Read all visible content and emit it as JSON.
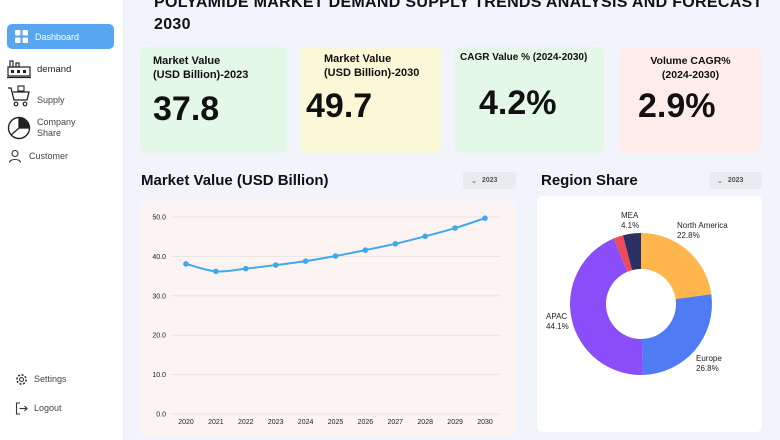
{
  "page": {
    "title": "POLYAMIDE MARKET DEMAND SUPPLY TRENDS ANALYSIS AND FORECAST 2030"
  },
  "sidebar": {
    "items": [
      {
        "label": "Dashboard",
        "icon": "grid-icon",
        "active": true
      },
      {
        "label": "demand",
        "icon": "factory-icon"
      },
      {
        "label": "Supply",
        "icon": "cart-icon"
      },
      {
        "label": "Company Share",
        "icon": "pie-chart-icon"
      },
      {
        "label": "Customer",
        "icon": "user-icon"
      }
    ],
    "bottom_items": [
      {
        "label": "Settings",
        "icon": "gear-icon"
      },
      {
        "label": "Logout",
        "icon": "logout-icon"
      }
    ]
  },
  "kpis": [
    {
      "label_line1": "Market Value",
      "label_line2": "(USD Billion)-2023",
      "value": "37.8",
      "color": "#e3f8e6"
    },
    {
      "label_line1": "Market Value",
      "label_line2": "(USD Billion)-2030",
      "value": "49.7",
      "color": "#fbf8d8"
    },
    {
      "label_line1": "CAGR  Value % (2024-2030)",
      "label_line2": "",
      "value": "4.2%",
      "color": "#e3f8e6"
    },
    {
      "label_line1": "Volume CAGR%",
      "label_line2": "(2024-2030)",
      "value": "2.9%",
      "color": "#fdecea"
    }
  ],
  "market_value_section": {
    "title": "Market Value (USD Billion)",
    "year_select": "2023"
  },
  "region_section": {
    "title": "Region Share",
    "year_select": "2023"
  },
  "chart_data": [
    {
      "type": "line",
      "title": "Market Value (USD Billion)",
      "x": [
        "2020",
        "2021",
        "2022",
        "2023",
        "2024",
        "2025",
        "2026",
        "2027",
        "2028",
        "2029",
        "2030"
      ],
      "series": [
        {
          "values": [
            38.1,
            36.2,
            36.9,
            37.8,
            38.8,
            40.1,
            41.6,
            43.2,
            45.1,
            47.2,
            49.7
          ],
          "color": "#3fa9ec"
        }
      ],
      "y_ticks": [
        "0.0",
        "10.0",
        "20.0",
        "30.0",
        "40.0",
        "50.0"
      ],
      "ylim": [
        0,
        50
      ],
      "grid": true,
      "colors": {
        "panel": "#fbf4f2",
        "grid": "#e6e0de"
      }
    },
    {
      "type": "pie",
      "title": "Region Share",
      "donut": true,
      "slices": [
        {
          "name": "North America",
          "value": 22.8,
          "label": "22.8%",
          "color": "#ffb74d"
        },
        {
          "name": "Europe",
          "value": 26.8,
          "label": "26.8%",
          "color": "#4f7bf3"
        },
        {
          "name": "APAC",
          "value": 44.1,
          "label": "44.1%",
          "color": "#8a4dfa"
        },
        {
          "name": "",
          "value": 2.2,
          "label": "",
          "color": "#f04b5a"
        },
        {
          "name": "MEA",
          "value": 4.1,
          "label": "4.1%",
          "color": "#2a3163"
        }
      ]
    }
  ]
}
